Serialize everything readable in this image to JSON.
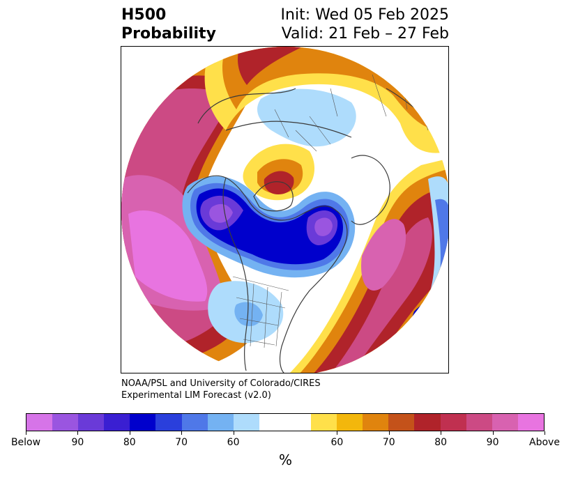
{
  "header": {
    "title_line1": "H500",
    "title_line2": "Probability",
    "init": "Init: Wed 05 Feb 2025",
    "valid": "Valid: 21 Feb – 27 Feb"
  },
  "credit": {
    "line1": "NOAA/PSL and University of Colorado/CIRES",
    "line2": "Experimental LIM Forecast (v2.0)"
  },
  "colorbar": {
    "units": "%",
    "colors": [
      "#d674e8",
      "#9a55e0",
      "#6a3ad8",
      "#3a1fd2",
      "#0000cc",
      "#2a3fdc",
      "#4f78e8",
      "#74b2f2",
      "#aedcfc",
      "#ffffff",
      "#ffffff",
      "#ffe04a",
      "#f3b70c",
      "#e0840e",
      "#c4521a",
      "#b0232a",
      "#c03050",
      "#cc4a84",
      "#d862b0",
      "#e874e0"
    ],
    "tick_labels": [
      "Below",
      "90",
      "80",
      "70",
      "60",
      "60",
      "70",
      "80",
      "90",
      "Above"
    ]
  },
  "map": {
    "projection": "north-polar-stereographic",
    "field": "H500 probability",
    "features": [
      "coastlines",
      "country-borders",
      "us-state-borders"
    ]
  }
}
